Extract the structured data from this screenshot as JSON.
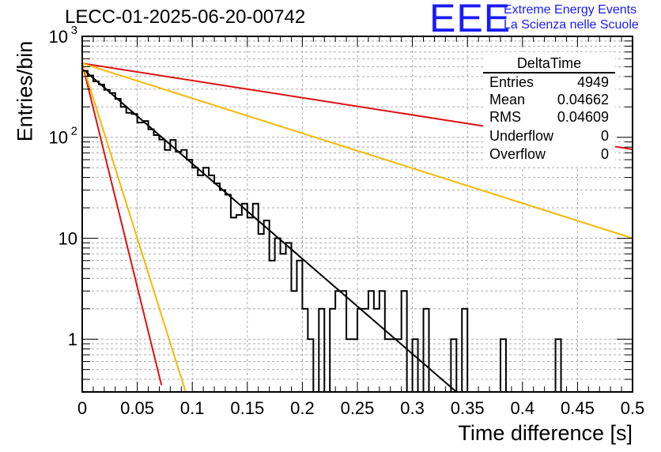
{
  "title": "LECC-01-2025-06-20-00742",
  "logo": {
    "letters": "EEE",
    "line1": "Extreme Energy Events",
    "line2": "La Scienza nelle Scuole",
    "color": "#1a1aff"
  },
  "stats": {
    "title": "DeltaTime",
    "rows": [
      {
        "label": "Entries",
        "value": "4949"
      },
      {
        "label": "Mean",
        "value": "0.04662"
      },
      {
        "label": "RMS",
        "value": "0.04609"
      },
      {
        "label": "Underflow",
        "value": "0"
      },
      {
        "label": "Overflow",
        "value": "0"
      }
    ]
  },
  "chart_data": {
    "type": "line",
    "xlabel": "Time difference [s]",
    "ylabel": "Entries/bin",
    "xlim": [
      0,
      0.5
    ],
    "ylim": [
      0.3,
      1000
    ],
    "yscale": "log",
    "grid": true,
    "stats_box": "top-right",
    "xticks": [
      "0",
      "0.05",
      "0.1",
      "0.15",
      "0.2",
      "0.25",
      "0.3",
      "0.35",
      "0.4",
      "0.45",
      "0.5"
    ],
    "yticks": [
      {
        "value": 1,
        "label": "1"
      },
      {
        "value": 10,
        "label": "10"
      },
      {
        "value": 100,
        "label": "10",
        "exp": "2"
      },
      {
        "value": 1000,
        "label": "10",
        "exp": "3"
      }
    ],
    "histogram": {
      "bin_width": 0.005,
      "color": "#000000",
      "values": [
        455,
        410,
        358,
        333,
        295,
        275,
        240,
        200,
        175,
        170,
        140,
        145,
        120,
        105,
        95,
        75,
        94,
        72,
        75,
        60,
        50,
        42,
        50,
        42,
        35,
        30,
        27,
        16,
        17,
        22,
        16,
        22,
        11,
        15,
        6,
        10,
        7,
        9,
        3,
        6,
        2,
        1,
        0.1,
        2,
        0.1,
        2,
        3,
        3,
        1,
        1,
        2,
        2,
        3,
        2,
        3,
        1,
        1,
        1,
        3,
        0.1,
        1,
        0.1,
        2,
        0.1,
        0.1,
        0.1,
        0.1,
        1,
        0.1,
        2,
        0.1,
        0.1,
        0.1,
        0.1,
        0.1,
        0.1,
        1,
        0.1,
        0.1,
        0.1,
        0.1,
        0.1,
        0.1,
        0.1,
        0.1,
        0.1,
        1,
        0.1,
        0.1,
        0.1,
        0.1,
        0.1,
        0.1,
        0.1,
        0.1,
        0.1,
        0.1,
        0.1,
        0.1,
        0.1
      ]
    },
    "series": [
      {
        "color": "#000000",
        "x": [
          0,
          0.34
        ],
        "y": [
          480,
          0.3
        ]
      },
      {
        "color": "#dd1111",
        "x": [
          0,
          0.5
        ],
        "y": [
          540,
          76
        ]
      },
      {
        "color": "#f5b800",
        "x": [
          0,
          0.5
        ],
        "y": [
          540,
          10
        ]
      },
      {
        "color": "#dd1111",
        "x": [
          0,
          0.072
        ],
        "y": [
          540,
          0.35
        ]
      },
      {
        "color": "#f5b800",
        "x": [
          0,
          0.094
        ],
        "y": [
          540,
          0.3
        ]
      }
    ]
  }
}
